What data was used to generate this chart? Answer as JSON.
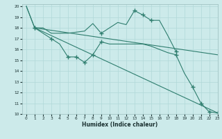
{
  "xlabel": "Humidex (Indice chaleur)",
  "bg_color": "#cceaea",
  "grid_color": "#b0d8d8",
  "line_color": "#2e7d6e",
  "xlim": [
    -0.5,
    23
  ],
  "ylim": [
    10,
    20.2
  ],
  "xticks": [
    0,
    1,
    2,
    3,
    4,
    5,
    6,
    7,
    8,
    9,
    10,
    11,
    12,
    13,
    14,
    15,
    16,
    17,
    18,
    19,
    20,
    21,
    22,
    23
  ],
  "yticks": [
    10,
    11,
    12,
    13,
    14,
    15,
    16,
    17,
    18,
    19,
    20
  ],
  "line1_x": [
    1,
    2,
    3,
    4,
    5,
    6,
    7,
    8,
    9,
    10,
    11,
    12,
    13,
    14,
    15,
    16,
    17,
    18
  ],
  "line1_y": [
    18,
    18,
    17.5,
    17.5,
    17.5,
    17.6,
    17.7,
    18.4,
    17.5,
    18.0,
    18.5,
    18.3,
    19.6,
    19.2,
    18.7,
    18.7,
    17.3,
    15.8
  ],
  "line1_mx": [
    1,
    9,
    13,
    14,
    15,
    18
  ],
  "line1_my": [
    18,
    17.5,
    19.6,
    19.2,
    18.7,
    15.8
  ],
  "line2_x": [
    1,
    2,
    3,
    4,
    5,
    6,
    7,
    8,
    9,
    10,
    11,
    12,
    13,
    14,
    15,
    16,
    17,
    18,
    19,
    20,
    21,
    22,
    23
  ],
  "line2_y": [
    18,
    17.5,
    17.0,
    16.5,
    15.3,
    15.3,
    14.8,
    15.5,
    16.7,
    16.5,
    16.5,
    16.5,
    16.5,
    16.5,
    16.3,
    16.0,
    15.7,
    15.5,
    13.8,
    12.5,
    11.0,
    10.2,
    10.1
  ],
  "line2_mx": [
    1,
    3,
    5,
    6,
    7,
    8,
    9,
    18,
    20,
    21,
    22,
    23
  ],
  "line2_my": [
    18,
    17.0,
    15.3,
    15.3,
    14.8,
    15.5,
    16.7,
    15.5,
    12.5,
    11.0,
    10.2,
    10.1
  ],
  "line3_x": [
    0,
    1,
    23
  ],
  "line3_y": [
    20,
    18,
    10.1
  ],
  "line4_x": [
    0,
    1,
    23
  ],
  "line4_y": [
    20,
    18,
    15.5
  ]
}
